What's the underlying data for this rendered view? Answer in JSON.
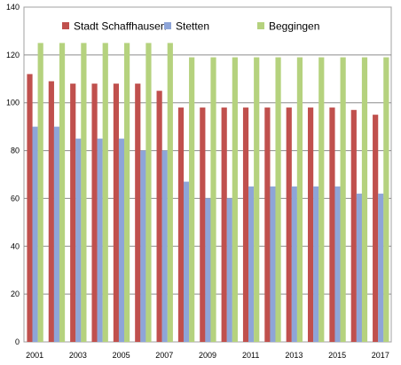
{
  "chart_data": {
    "type": "bar",
    "categories": [
      "2001",
      "2002",
      "2003",
      "2004",
      "2005",
      "2006",
      "2007",
      "2008",
      "2009",
      "2010",
      "2011",
      "2012",
      "2013",
      "2014",
      "2015",
      "2016",
      "2017"
    ],
    "x_tick_labels": [
      "2001",
      "2003",
      "2005",
      "2007",
      "2009",
      "2011",
      "2013",
      "2015",
      "2017"
    ],
    "series": [
      {
        "name": "Stadt Schaffhausen",
        "color": "#c0504d",
        "values": [
          112,
          109,
          108,
          108,
          108,
          108,
          105,
          98,
          98,
          98,
          98,
          98,
          98,
          98,
          98,
          97,
          95
        ]
      },
      {
        "name": "Stetten",
        "color": "#8ea5d8",
        "values": [
          90,
          90,
          85,
          85,
          85,
          80,
          80,
          67,
          60,
          60,
          65,
          65,
          65,
          65,
          65,
          62,
          62
        ]
      },
      {
        "name": "Beggingen",
        "color": "#b5d27e",
        "values": [
          125,
          125,
          125,
          125,
          125,
          125,
          125,
          119,
          119,
          119,
          119,
          119,
          119,
          119,
          119,
          119,
          119
        ]
      }
    ],
    "ylim": [
      0,
      140
    ],
    "y_ticks": [
      0,
      20,
      40,
      60,
      80,
      100,
      120,
      140
    ],
    "grid": true,
    "legend_position": "top"
  }
}
